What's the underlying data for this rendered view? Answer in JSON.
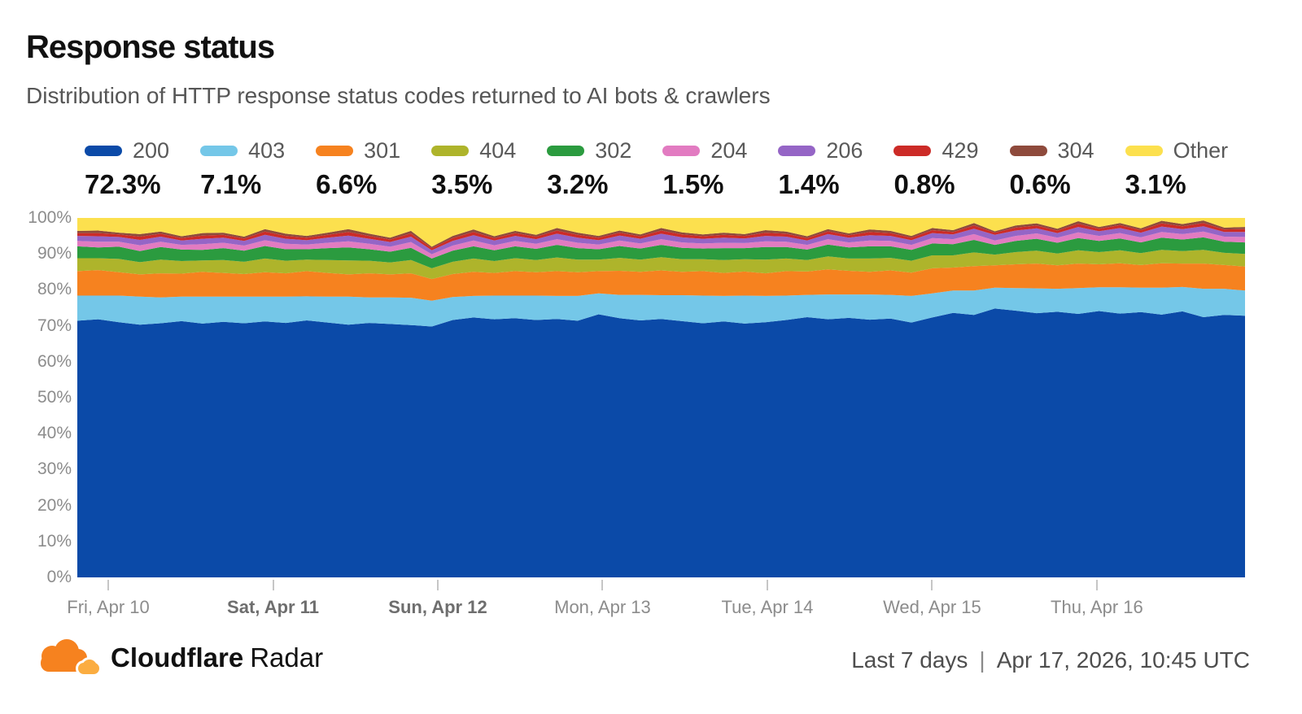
{
  "header": {
    "title": "Response status",
    "subtitle": "Distribution of HTTP response status codes returned to AI bots & crawlers"
  },
  "footer": {
    "brand_bold": "Cloudflare",
    "brand_regular": "Radar",
    "range_label": "Last 7 days",
    "separator": "|",
    "timestamp": "Apr 17, 2026, 10:45 UTC"
  },
  "chart_data": {
    "type": "area",
    "stacked_percent": true,
    "title": "Response status",
    "legend_position": "top",
    "grid": false,
    "y_axis": {
      "min": 0,
      "max": 100,
      "tick_labels": [
        "100%",
        "90%",
        "80%",
        "70%",
        "60%",
        "50%",
        "40%",
        "30%",
        "20%",
        "10%",
        "0%"
      ]
    },
    "x_axis": {
      "ticks": [
        {
          "label": "Fri, Apr 10",
          "bold": false
        },
        {
          "label": "Sat, Apr 11",
          "bold": true
        },
        {
          "label": "Sun, Apr 12",
          "bold": true
        },
        {
          "label": "Mon, Apr 13",
          "bold": false
        },
        {
          "label": "Tue, Apr 14",
          "bold": false
        },
        {
          "label": "Wed, Apr 15",
          "bold": false
        },
        {
          "label": "Thu, Apr 16",
          "bold": false
        }
      ]
    },
    "series": [
      {
        "name": "200",
        "share_label": "72.3%",
        "color": "#0B4AA8",
        "values": [
          71.4,
          71.8,
          71.0,
          70.3,
          70.7,
          71.3,
          70.6,
          71.1,
          70.7,
          71.2,
          70.8,
          71.5,
          70.9,
          70.3,
          70.8,
          70.5,
          70.2,
          69.8,
          71.6,
          72.3,
          71.8,
          72.1,
          71.6,
          71.9,
          71.4,
          73.2,
          72.1,
          71.5,
          71.9,
          71.3,
          70.7,
          71.2,
          70.6,
          71.0,
          71.6,
          72.4,
          71.8,
          72.2,
          71.7,
          72.0,
          70.9,
          72.3,
          73.6,
          73.0,
          74.8,
          74.2,
          73.5,
          73.9,
          73.3,
          74.1,
          73.4,
          73.8,
          73.1,
          74.0,
          72.4,
          73.0,
          72.8
        ]
      },
      {
        "name": "403",
        "share_label": "7.1%",
        "color": "#74C7E8",
        "values": [
          7.0,
          6.6,
          7.4,
          7.8,
          7.2,
          6.8,
          7.5,
          7.0,
          7.4,
          6.9,
          7.3,
          6.7,
          7.2,
          7.8,
          7.1,
          7.4,
          7.6,
          7.2,
          6.4,
          6.0,
          6.6,
          6.3,
          6.8,
          6.4,
          6.9,
          5.8,
          6.5,
          7.1,
          6.6,
          7.2,
          7.7,
          7.1,
          7.8,
          7.3,
          6.8,
          6.2,
          6.9,
          6.5,
          7.0,
          6.6,
          7.4,
          6.7,
          6.2,
          6.8,
          5.8,
          6.3,
          6.9,
          6.4,
          7.2,
          6.6,
          7.3,
          6.8,
          7.5,
          6.8,
          7.9,
          7.3,
          7.0
        ]
      },
      {
        "name": "301",
        "share_label": "6.6%",
        "color": "#F6821F",
        "values": [
          6.8,
          7.1,
          6.5,
          6.2,
          6.7,
          6.4,
          6.9,
          6.6,
          6.3,
          6.8,
          6.5,
          7.0,
          6.6,
          6.2,
          6.7,
          6.4,
          6.8,
          6.0,
          6.4,
          6.7,
          6.3,
          6.8,
          6.5,
          6.9,
          6.6,
          6.2,
          6.7,
          6.4,
          6.9,
          6.5,
          6.8,
          6.4,
          6.7,
          6.3,
          6.8,
          6.5,
          7.0,
          6.6,
          6.3,
          6.8,
          6.5,
          7.0,
          6.4,
          6.8,
          6.2,
          6.6,
          6.9,
          6.5,
          6.8,
          6.4,
          6.7,
          6.3,
          6.8,
          6.5,
          7.0,
          6.6,
          6.7
        ]
      },
      {
        "name": "404",
        "share_label": "3.5%",
        "color": "#AEB42B",
        "values": [
          3.6,
          3.3,
          3.7,
          3.4,
          3.8,
          3.5,
          3.2,
          3.6,
          3.4,
          3.8,
          3.5,
          3.2,
          3.6,
          3.9,
          3.5,
          3.3,
          3.7,
          3.0,
          3.4,
          3.7,
          3.3,
          3.6,
          3.4,
          3.8,
          3.5,
          3.2,
          3.6,
          3.4,
          3.7,
          3.5,
          3.3,
          3.6,
          3.4,
          3.8,
          3.5,
          3.2,
          3.6,
          3.4,
          3.7,
          3.5,
          3.3,
          3.6,
          3.4,
          3.8,
          3.0,
          3.4,
          3.6,
          3.3,
          3.7,
          3.4,
          3.6,
          3.3,
          3.7,
          3.5,
          3.8,
          3.4,
          3.5
        ]
      },
      {
        "name": "302",
        "share_label": "3.2%",
        "color": "#2B9B3F",
        "values": [
          3.3,
          3.0,
          3.4,
          3.1,
          3.5,
          3.2,
          2.9,
          3.3,
          3.1,
          3.5,
          3.2,
          2.9,
          3.3,
          3.6,
          3.2,
          3.0,
          3.4,
          2.7,
          3.1,
          3.4,
          3.0,
          3.3,
          3.1,
          3.5,
          3.2,
          2.9,
          3.3,
          3.1,
          3.4,
          3.2,
          3.0,
          3.3,
          3.1,
          3.5,
          3.2,
          2.9,
          3.3,
          3.1,
          3.4,
          3.2,
          3.0,
          3.3,
          3.1,
          3.5,
          2.7,
          3.1,
          3.3,
          3.0,
          3.4,
          3.1,
          3.3,
          3.0,
          3.4,
          3.2,
          3.5,
          3.1,
          3.2
        ]
      },
      {
        "name": "204",
        "share_label": "1.5%",
        "color": "#E27BC1",
        "values": [
          1.5,
          1.6,
          1.4,
          1.6,
          1.5,
          1.3,
          1.6,
          1.5,
          1.4,
          1.6,
          1.5,
          1.3,
          1.5,
          1.7,
          1.5,
          1.4,
          1.6,
          1.2,
          1.4,
          1.6,
          1.4,
          1.5,
          1.4,
          1.6,
          1.5,
          1.3,
          1.5,
          1.4,
          1.6,
          1.5,
          1.4,
          1.5,
          1.4,
          1.6,
          1.5,
          1.3,
          1.5,
          1.4,
          1.6,
          1.5,
          1.4,
          1.5,
          1.4,
          1.6,
          1.2,
          1.4,
          1.5,
          1.4,
          1.6,
          1.4,
          1.5,
          1.4,
          1.6,
          1.5,
          1.6,
          1.4,
          1.5
        ]
      },
      {
        "name": "206",
        "share_label": "1.4%",
        "color": "#9565C6",
        "values": [
          1.4,
          1.5,
          1.3,
          1.5,
          1.4,
          1.2,
          1.5,
          1.4,
          1.3,
          1.5,
          1.4,
          1.2,
          1.4,
          1.6,
          1.4,
          1.3,
          1.5,
          1.1,
          1.3,
          1.5,
          1.3,
          1.4,
          1.3,
          1.5,
          1.4,
          1.2,
          1.4,
          1.3,
          1.5,
          1.4,
          1.3,
          1.4,
          1.3,
          1.5,
          1.4,
          1.2,
          1.4,
          1.3,
          1.5,
          1.4,
          1.3,
          1.4,
          1.3,
          1.5,
          1.6,
          1.5,
          1.4,
          1.3,
          1.5,
          1.3,
          1.4,
          1.3,
          1.5,
          1.4,
          1.5,
          1.3,
          1.4
        ]
      },
      {
        "name": "429",
        "share_label": "0.8%",
        "color": "#CC2B27",
        "values": [
          0.8,
          0.9,
          0.7,
          0.9,
          0.8,
          0.7,
          0.9,
          0.8,
          0.7,
          0.9,
          0.8,
          0.7,
          0.8,
          1.0,
          0.8,
          0.7,
          0.9,
          0.6,
          0.8,
          0.9,
          0.7,
          0.8,
          0.7,
          0.9,
          0.8,
          0.7,
          0.8,
          0.7,
          0.9,
          0.8,
          0.7,
          0.8,
          0.7,
          0.9,
          0.8,
          0.7,
          0.8,
          0.7,
          0.9,
          0.8,
          0.7,
          0.8,
          0.7,
          0.9,
          0.6,
          0.8,
          0.8,
          0.7,
          0.9,
          0.7,
          0.8,
          0.7,
          0.9,
          0.8,
          0.9,
          0.7,
          0.8
        ]
      },
      {
        "name": "304",
        "share_label": "0.6%",
        "color": "#8E4A3C",
        "values": [
          0.6,
          0.7,
          0.5,
          0.7,
          0.6,
          0.5,
          0.7,
          0.6,
          0.5,
          0.7,
          0.6,
          0.5,
          0.6,
          0.8,
          0.6,
          0.5,
          0.7,
          0.4,
          0.6,
          0.7,
          0.5,
          0.6,
          0.5,
          0.7,
          0.6,
          0.5,
          0.6,
          0.5,
          0.7,
          0.6,
          0.5,
          0.6,
          0.5,
          0.7,
          0.6,
          0.5,
          0.6,
          0.5,
          0.7,
          0.6,
          0.5,
          0.6,
          0.5,
          0.7,
          0.4,
          0.6,
          0.6,
          0.5,
          0.7,
          0.5,
          0.6,
          0.5,
          0.7,
          0.6,
          0.7,
          0.5,
          0.6
        ]
      },
      {
        "name": "Other",
        "share_label": "3.1%",
        "color": "#FCE04E",
        "remainder": true
      }
    ]
  },
  "colors": {
    "brand_orange": "#F6821F",
    "brand_orange_light": "#FBAD41",
    "axis_text": "#8C8C8C",
    "tick_line": "#C6C6C6"
  }
}
